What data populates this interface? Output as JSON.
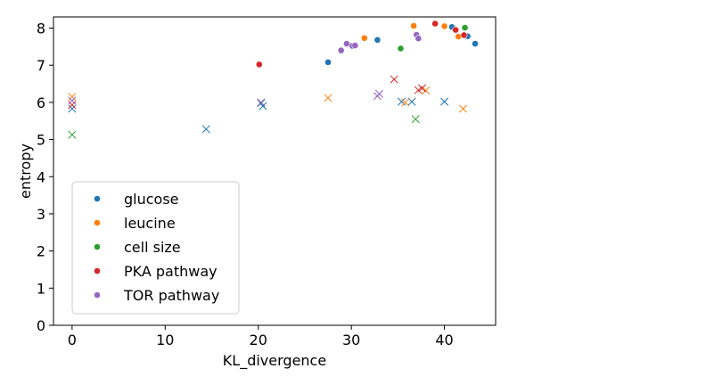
{
  "chart_data": {
    "type": "scatter",
    "title": "",
    "xlabel": "KL_divergence",
    "ylabel": "entropy",
    "xlim": [
      -2,
      45.5
    ],
    "ylim": [
      0,
      8.3
    ],
    "xticks": [
      0,
      10,
      20,
      30,
      40
    ],
    "yticks": [
      0,
      1,
      2,
      3,
      4,
      5,
      6,
      7,
      8
    ],
    "grid": false,
    "legend_position": "lower-left",
    "marker_note": "dots and crosses",
    "series": [
      {
        "name": "glucose",
        "color": "#1f77b4",
        "dots": [
          [
            27.5,
            7.08
          ],
          [
            32.8,
            7.68
          ],
          [
            40.8,
            8.03
          ],
          [
            42.5,
            7.78
          ],
          [
            43.3,
            7.58
          ]
        ],
        "crosses": [
          [
            0.0,
            5.83
          ],
          [
            14.4,
            5.28
          ],
          [
            20.3,
            5.98
          ],
          [
            20.5,
            5.9
          ],
          [
            35.4,
            6.02
          ],
          [
            36.5,
            6.02
          ],
          [
            40.0,
            6.02
          ]
        ]
      },
      {
        "name": "leucine",
        "color": "#ff7f0e",
        "dots": [
          [
            31.4,
            7.73
          ],
          [
            36.7,
            8.06
          ],
          [
            40.0,
            8.05
          ],
          [
            41.5,
            7.77
          ]
        ],
        "crosses": [
          [
            0.0,
            6.15
          ],
          [
            27.5,
            6.12
          ],
          [
            35.8,
            6.0
          ],
          [
            38.0,
            6.32
          ],
          [
            42.0,
            5.83
          ]
        ]
      },
      {
        "name": "cell size",
        "color": "#2ca02c",
        "dots": [
          [
            35.3,
            7.45
          ],
          [
            42.2,
            8.01
          ]
        ],
        "crosses": [
          [
            0.0,
            5.13
          ],
          [
            36.9,
            5.55
          ]
        ]
      },
      {
        "name": "PKA pathway",
        "color": "#d62728",
        "dots": [
          [
            20.1,
            7.02
          ],
          [
            39.0,
            8.12
          ],
          [
            41.2,
            7.95
          ],
          [
            42.1,
            7.81
          ]
        ],
        "crosses": [
          [
            0.0,
            5.93
          ],
          [
            34.6,
            6.62
          ],
          [
            37.2,
            6.33
          ],
          [
            37.6,
            6.38
          ]
        ]
      },
      {
        "name": "TOR pathway",
        "color": "#9467bd",
        "dots": [
          [
            28.9,
            7.4
          ],
          [
            29.5,
            7.58
          ],
          [
            30.1,
            7.52
          ],
          [
            30.4,
            7.53
          ],
          [
            37.0,
            7.82
          ],
          [
            37.2,
            7.72
          ]
        ],
        "crosses": [
          [
            0.0,
            6.05
          ],
          [
            20.3,
            6.0
          ],
          [
            32.8,
            6.17
          ],
          [
            33.0,
            6.23
          ]
        ]
      }
    ]
  }
}
